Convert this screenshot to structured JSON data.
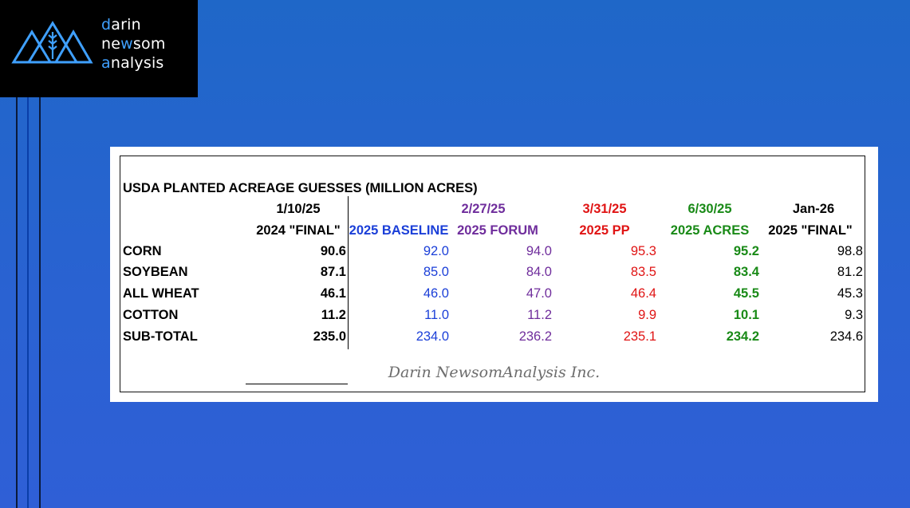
{
  "logo": {
    "line1": "darin",
    "line2": "newsom",
    "line3": "analysis"
  },
  "colors": {
    "blue": "#1b3fd8",
    "purple": "#6f2d9c",
    "red": "#e01414",
    "green": "#198a17",
    "black": "#000000"
  },
  "chart_data": {
    "type": "table",
    "title": "USDA PLANTED ACREAGE GUESSES (MILLION ACRES)",
    "columns": [
      {
        "date": "1/10/25",
        "label": "2024 \"FINAL\"",
        "color": "#000000"
      },
      {
        "date": "",
        "label": "2025 BASELINE",
        "color": "#1b3fd8"
      },
      {
        "date": "2/27/25",
        "label": "2025 FORUM",
        "color": "#6f2d9c"
      },
      {
        "date": "3/31/25",
        "label": "2025 PP",
        "color": "#e01414"
      },
      {
        "date": "6/30/25",
        "label": "2025 ACRES",
        "color": "#198a17"
      },
      {
        "date": "Jan-26",
        "label": "2025 \"FINAL\"",
        "color": "#000000"
      }
    ],
    "rows": [
      {
        "name": "CORN",
        "values": [
          "90.6",
          "92.0",
          "94.0",
          "95.3",
          "95.2",
          "98.8"
        ]
      },
      {
        "name": "SOYBEAN",
        "values": [
          "87.1",
          "85.0",
          "84.0",
          "83.5",
          "83.4",
          "81.2"
        ]
      },
      {
        "name": "ALL WHEAT",
        "values": [
          "46.1",
          "46.0",
          "47.0",
          "46.4",
          "45.5",
          "45.3"
        ]
      },
      {
        "name": "COTTON",
        "values": [
          "11.2",
          "11.0",
          "11.2",
          "9.9",
          "10.1",
          "9.3"
        ]
      },
      {
        "name": "SUB-TOTAL",
        "values": [
          "235.0",
          "234.0",
          "236.2",
          "235.1",
          "234.2",
          "234.6"
        ]
      }
    ],
    "source": "Darin NewsomAnalysis Inc."
  }
}
